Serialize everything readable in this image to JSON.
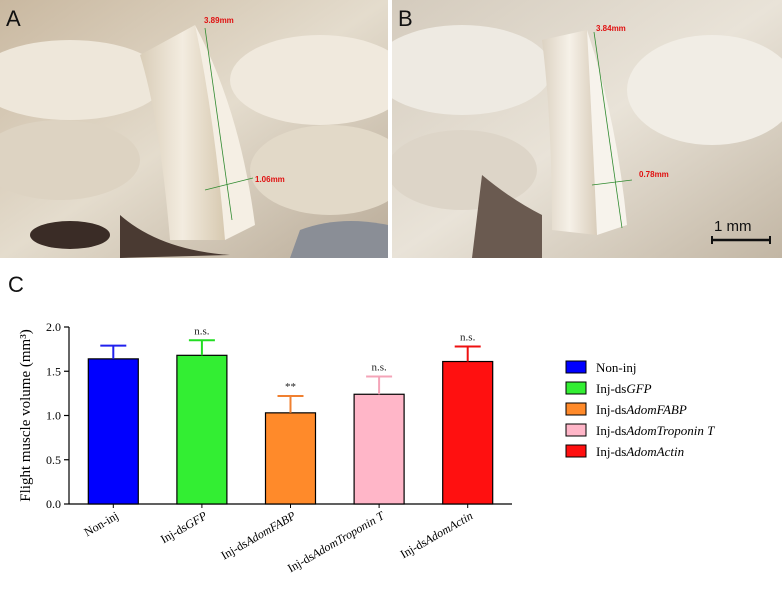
{
  "panels": {
    "a": {
      "letter": "A",
      "length_label": "3.89mm",
      "width_label": "1.06mm"
    },
    "b": {
      "letter": "B",
      "length_label": "3.84mm",
      "width_label": "0.78mm",
      "scale_bar": "1 mm"
    },
    "c": {
      "letter": "C"
    }
  },
  "chart_data": {
    "type": "bar",
    "title": "",
    "ylabel": "Flight muscle volume (mm³)",
    "ylim": [
      0,
      2.0
    ],
    "yticks": [
      "0.0",
      "0.5",
      "1.0",
      "1.5",
      "2.0"
    ],
    "categories": [
      {
        "prefix": "Non-inj",
        "italic": ""
      },
      {
        "prefix": "Inj-ds",
        "italic": "GFP"
      },
      {
        "prefix": "Inj-ds",
        "italic": "AdomFABP"
      },
      {
        "prefix": "Inj-ds",
        "italic": "AdomTroponin T"
      },
      {
        "prefix": "Inj-ds",
        "italic": "AdomActin"
      }
    ],
    "values": [
      1.64,
      1.68,
      1.03,
      1.24,
      1.61
    ],
    "errors": [
      0.15,
      0.17,
      0.19,
      0.2,
      0.17
    ],
    "significance": [
      "",
      "n.s.",
      "**",
      "n.s.",
      "n.s."
    ],
    "colors": [
      "#0000ff",
      "#33ee33",
      "#ff8a2a",
      "#ffb6c8",
      "#ff1010"
    ],
    "error_colors": [
      "#2020ee",
      "#22dd22",
      "#f08030",
      "#f4a4b8",
      "#ee1010"
    ],
    "legend_position": "right"
  }
}
